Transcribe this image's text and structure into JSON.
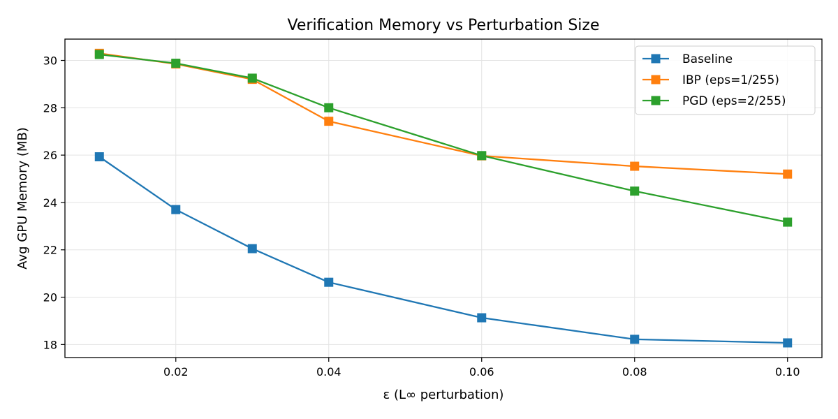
{
  "chart_data": {
    "type": "line",
    "title": "Verification Memory vs Perturbation Size",
    "xlabel": "ε (L∞ perturbation)",
    "ylabel": "Avg GPU Memory (MB)",
    "x": [
      0.01,
      0.02,
      0.03,
      0.04,
      0.06,
      0.08,
      0.1
    ],
    "xlim": [
      0.0055,
      0.1045
    ],
    "ylim": [
      17.45,
      30.9
    ],
    "xticks": [
      0.02,
      0.04,
      0.06,
      0.08,
      0.1
    ],
    "xtick_labels": [
      "0.02",
      "0.04",
      "0.06",
      "0.08",
      "0.10"
    ],
    "yticks": [
      18,
      20,
      22,
      24,
      26,
      28,
      30
    ],
    "ytick_labels": [
      "18",
      "20",
      "22",
      "24",
      "26",
      "28",
      "30"
    ],
    "grid": true,
    "legend_position": "top-right",
    "marker": "square",
    "series": [
      {
        "name": "Baseline",
        "color": "#1f77b4",
        "values": [
          25.93,
          23.7,
          22.05,
          20.63,
          19.13,
          18.22,
          18.07
        ]
      },
      {
        "name": "IBP (eps=1/255)",
        "color": "#ff7f0e",
        "values": [
          30.3,
          29.85,
          29.2,
          27.43,
          25.97,
          25.53,
          25.2
        ]
      },
      {
        "name": "PGD (eps=2/255)",
        "color": "#2ca02c",
        "values": [
          30.25,
          29.88,
          29.25,
          28.0,
          25.98,
          24.48,
          23.17
        ]
      }
    ]
  }
}
